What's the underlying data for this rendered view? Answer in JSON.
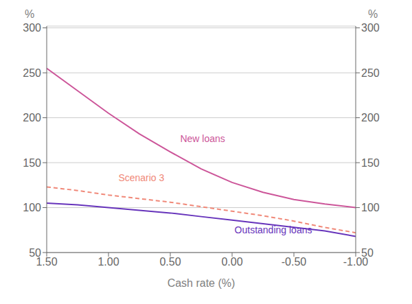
{
  "chart_data": {
    "type": "line",
    "xlabel": "Cash rate (%)",
    "ylabel": "%",
    "y2label": "%",
    "x": [
      1.5,
      1.25,
      1.0,
      0.75,
      0.5,
      0.25,
      0.0,
      -0.25,
      -0.5,
      -0.75,
      -1.0
    ],
    "series": [
      {
        "name": "New loans",
        "color": "#cc5599",
        "line_style": "solid",
        "values": [
          255,
          230,
          205,
          182,
          162,
          143,
          128,
          117,
          109,
          104,
          100
        ]
      },
      {
        "name": "Outstanding loans",
        "color": "#6633bb",
        "line_style": "solid",
        "values": [
          105,
          103,
          100,
          97,
          94,
          90,
          86,
          82,
          78,
          74,
          68
        ]
      },
      {
        "name": "Scenario 3",
        "color": "#f08878",
        "line_style": "dashed",
        "values": [
          123,
          119,
          114,
          110,
          106,
          101,
          96,
          91,
          85,
          78,
          72
        ]
      }
    ],
    "xlim": [
      1.5,
      -1.0
    ],
    "xticks": [
      {
        "value": 1.5,
        "label": "1.50"
      },
      {
        "value": 1.0,
        "label": "1.00"
      },
      {
        "value": 0.5,
        "label": "0.50"
      },
      {
        "value": 0.0,
        "label": "0.00"
      },
      {
        "value": -0.5,
        "label": "-0.50"
      },
      {
        "value": -1.0,
        "label": "-1.00"
      }
    ],
    "ylim": [
      50,
      302
    ],
    "yticks": [
      50,
      100,
      150,
      200,
      250,
      300
    ],
    "y2lim": [
      50,
      302
    ],
    "y2ticks": [
      50,
      100,
      150,
      200,
      250,
      300
    ],
    "grid": true,
    "annotations": [
      {
        "text": "New loans",
        "x": 0.42,
        "y": 177,
        "color": "#cc5599"
      },
      {
        "text": "Scenario 3",
        "x": 0.92,
        "y": 133,
        "color": "#f08878"
      },
      {
        "text": "Outstanding loans",
        "x": -0.02,
        "y": 75,
        "color": "#6633bb"
      }
    ]
  }
}
